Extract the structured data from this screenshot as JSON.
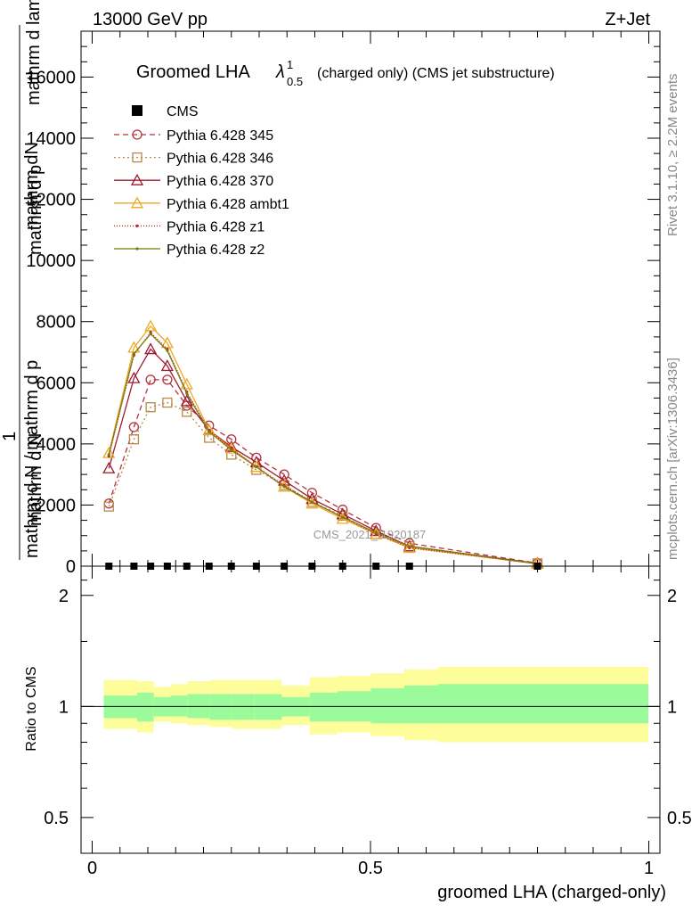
{
  "header": {
    "left": "13000 GeV pp",
    "right": "Z+Jet"
  },
  "side_labels": {
    "rivet": "Rivet 3.1.10, ≥ 2.2M events",
    "mcplots": "mcplots.cern.ch [arXiv:1306.3436]"
  },
  "watermark": "CMS_2021_I1920187",
  "chart_data": [
    {
      "type": "line",
      "title_main": "Groomed LHA",
      "title_symbol": "λ",
      "title_sup": "1",
      "title_sub": "0.5",
      "title_rest": "(charged only) (CMS jet substructure)",
      "ylabel_top": "mathrm dN",
      "ylabel_top2": "mathrm d p",
      "ylabel_top3": "mathrm d lambda",
      "ylabel_mid": "1",
      "ylabel_bottom": "mathrm d N / mathrm d p",
      "ylabel_bottom2": "mathrm d N",
      "ylim": [
        0,
        17500
      ],
      "xlim": [
        -0.02,
        1.02
      ],
      "yticks": [
        0,
        2000,
        4000,
        6000,
        8000,
        10000,
        12000,
        14000,
        16000
      ],
      "ytick_labels": [
        "0",
        "2000",
        "4000",
        "6000",
        "8000",
        "10000",
        "12000",
        "14000",
        "16000"
      ],
      "legend_position": "top-left",
      "x": [
        0.03,
        0.075,
        0.105,
        0.135,
        0.17,
        0.21,
        0.25,
        0.295,
        0.345,
        0.395,
        0.45,
        0.51,
        0.57,
        0.8
      ],
      "cms": [
        0,
        0,
        0,
        0,
        0,
        0,
        0,
        0,
        0,
        0,
        0,
        0,
        0,
        0
      ],
      "series": [
        {
          "name": "Pythia 6.428 345",
          "color": "#b5343f",
          "dash": "6,4",
          "marker": "circle",
          "values": [
            2050,
            4550,
            6100,
            6100,
            5250,
            4600,
            4150,
            3550,
            3000,
            2400,
            1850,
            1250,
            750,
            100
          ]
        },
        {
          "name": "Pythia 6.428 346",
          "color": "#b8894a",
          "dash": "2,3",
          "marker": "square",
          "values": [
            1950,
            4150,
            5200,
            5350,
            5050,
            4200,
            3650,
            3150,
            2650,
            2100,
            1650,
            1050,
            650,
            90
          ]
        },
        {
          "name": "Pythia 6.428 370",
          "color": "#9e1a2e",
          "dash": "",
          "marker": "triangle",
          "values": [
            3200,
            6150,
            7100,
            6550,
            5400,
            4450,
            3900,
            3400,
            2800,
            2200,
            1700,
            1150,
            650,
            90
          ]
        },
        {
          "name": "Pythia 6.428 ambt1",
          "color": "#eda823",
          "dash": "",
          "marker": "triangle",
          "values": [
            3700,
            7150,
            7850,
            7300,
            5950,
            4450,
            3850,
            3250,
            2600,
            2050,
            1550,
            1050,
            600,
            80
          ]
        },
        {
          "name": "Pythia 6.428 z1",
          "color": "#c42020",
          "dash": "1,2",
          "marker": "dot",
          "values": [
            3600,
            6900,
            7650,
            7100,
            5700,
            4450,
            3850,
            3250,
            2650,
            2100,
            1600,
            1050,
            600,
            80
          ]
        },
        {
          "name": "Pythia 6.428 z2",
          "color": "#7a7a12",
          "dash": "",
          "marker": "dot",
          "values": [
            3650,
            6950,
            7600,
            7050,
            5650,
            4400,
            3800,
            3250,
            2600,
            2100,
            1600,
            1100,
            650,
            80
          ]
        }
      ]
    },
    {
      "type": "area",
      "ylabel": "Ratio to CMS",
      "xlabel": "groomed LHA (charged-only)",
      "ylog": true,
      "ylim": [
        0.4,
        2.4
      ],
      "xlim": [
        -0.02,
        1.02
      ],
      "yticks": [
        0.5,
        1,
        2
      ],
      "ytick_labels": [
        "0.5",
        "1",
        "2"
      ],
      "xticks": [
        0,
        0.5,
        1
      ],
      "xtick_labels": [
        "0",
        "0.5",
        "1"
      ],
      "bin_edges": [
        0,
        0.06,
        0.09,
        0.12,
        0.15,
        0.19,
        0.23,
        0.27,
        0.32,
        0.37,
        0.42,
        0.48,
        0.54,
        0.6,
        1.0
      ],
      "stat_lo": [
        0.93,
        0.91,
        0.94,
        0.94,
        0.93,
        0.92,
        0.92,
        0.92,
        0.94,
        0.91,
        0.91,
        0.9,
        0.9,
        0.9
      ],
      "stat_hi": [
        1.07,
        1.09,
        1.06,
        1.07,
        1.08,
        1.08,
        1.08,
        1.08,
        1.06,
        1.09,
        1.1,
        1.12,
        1.14,
        1.15
      ],
      "total_lo": [
        0.87,
        0.85,
        0.91,
        0.9,
        0.89,
        0.88,
        0.87,
        0.87,
        0.89,
        0.84,
        0.85,
        0.83,
        0.81,
        0.8
      ],
      "total_hi": [
        1.18,
        1.17,
        1.13,
        1.15,
        1.17,
        1.18,
        1.18,
        1.18,
        1.14,
        1.2,
        1.21,
        1.23,
        1.26,
        1.28
      ],
      "stat_color": "#9bfb9b",
      "total_color": "#fdfd9b"
    }
  ]
}
